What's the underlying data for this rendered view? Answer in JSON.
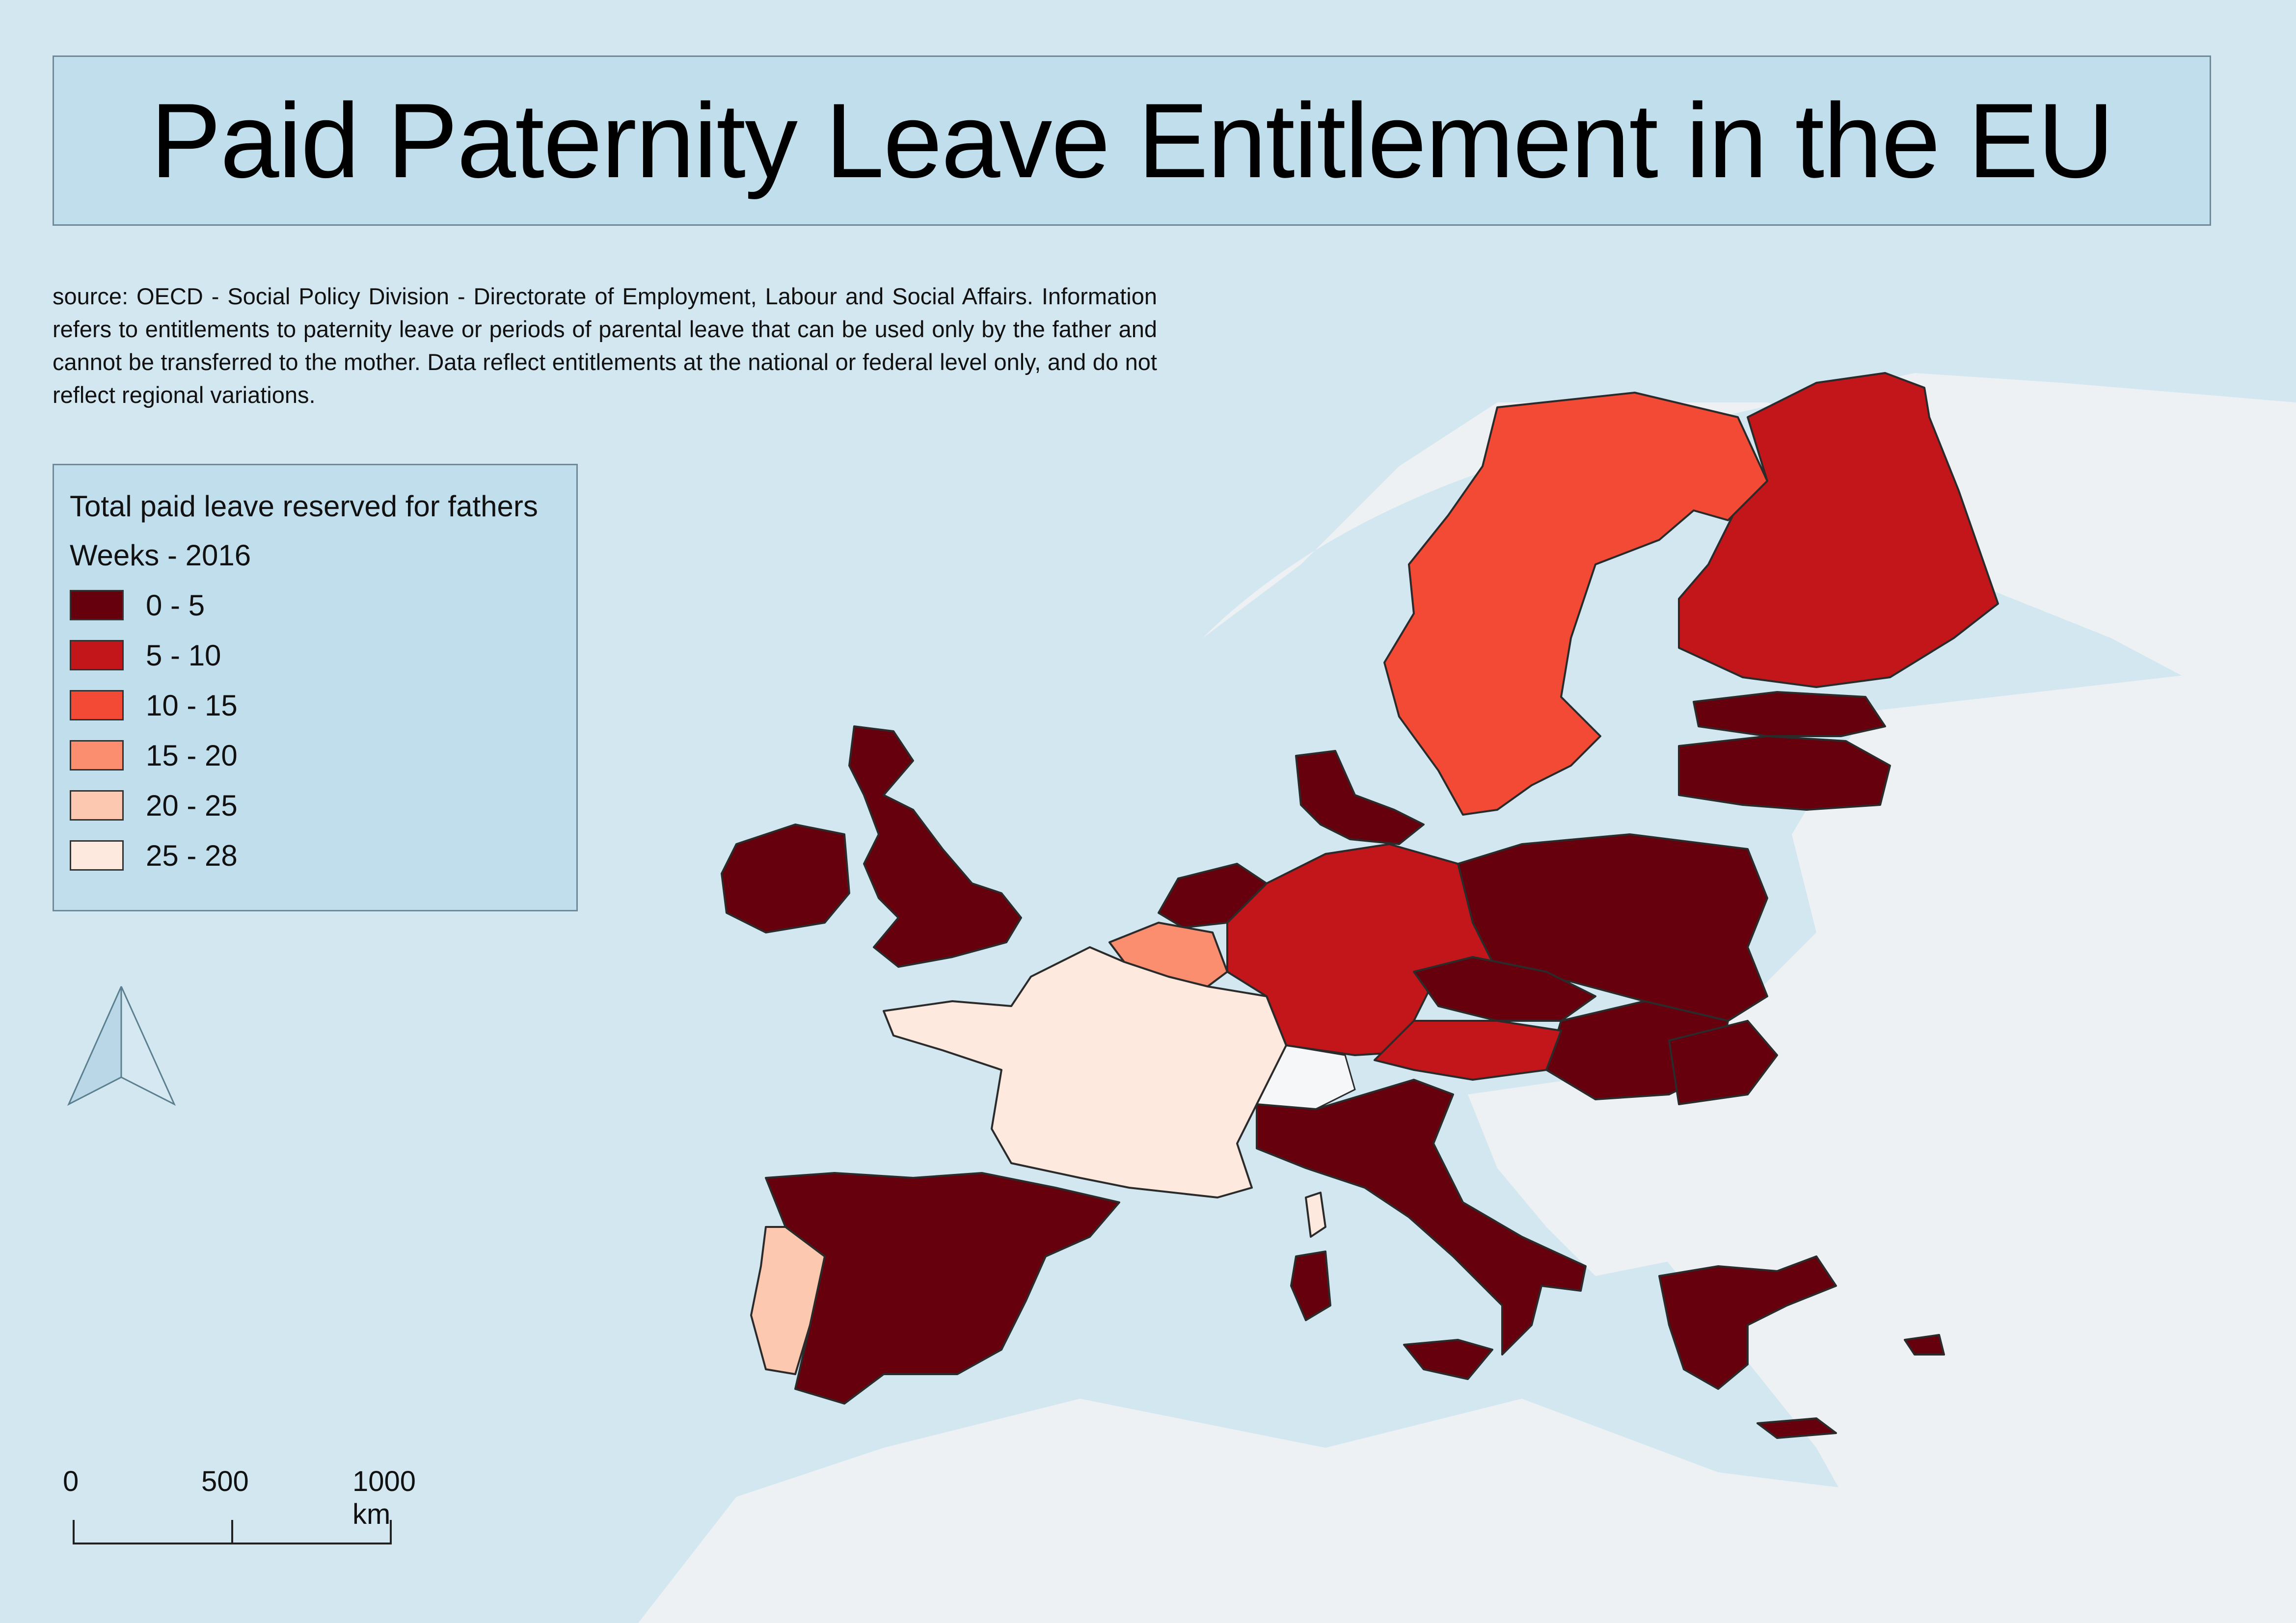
{
  "title": "Paid Paternity Leave Entitlement in the EU",
  "source_text": "source: OECD - Social Policy Division - Directorate of Employment, Labour and Social Affairs. Information refers to entitlements to paternity leave or periods of parental leave that can be used only by the father and cannot be transferred to the mother. Data reflect entitlements at the national or federal level only, and do not reflect regional variations.",
  "legend": {
    "title": "Total paid leave reserved for fathers",
    "subtitle": "Weeks - 2016",
    "classes": [
      {
        "label": "0 - 5",
        "color": "#67000d"
      },
      {
        "label": "5 - 10",
        "color": "#c3161b"
      },
      {
        "label": "10 - 15",
        "color": "#f34a36"
      },
      {
        "label": "15 - 20",
        "color": "#fb8e6e"
      },
      {
        "label": "20 - 25",
        "color": "#fcc8b0"
      },
      {
        "label": "25 - 28",
        "color": "#fee9df"
      }
    ]
  },
  "scale_bar": {
    "labels": [
      "0",
      "500",
      "1000 km"
    ]
  },
  "colors": {
    "sea": "#d2e7f0",
    "land_non_eu": "#eef1f3",
    "border": "#2b2b2b"
  },
  "icons": {
    "north_arrow": "north-arrow-icon"
  }
}
